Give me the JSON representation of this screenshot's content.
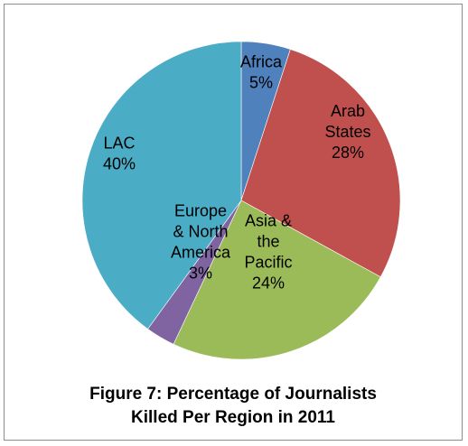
{
  "chart_data": {
    "type": "pie",
    "title": "",
    "slices": [
      {
        "label_lines": [
          "Africa",
          "5%"
        ],
        "value": 5,
        "color": "#4f81bd"
      },
      {
        "label_lines": [
          "Arab",
          "States",
          "28%"
        ],
        "value": 28,
        "color": "#c0504d"
      },
      {
        "label_lines": [
          "Asia &",
          "the",
          "Pacific",
          "24%"
        ],
        "value": 24,
        "color": "#9bbb59"
      },
      {
        "label_lines": [
          "Europe",
          "& North",
          "America",
          "3%"
        ],
        "value": 3,
        "color": "#8064a2"
      },
      {
        "label_lines": [
          "LAC",
          "40%"
        ],
        "value": 40,
        "color": "#4bacc6"
      }
    ]
  },
  "caption": {
    "line1": "Figure 7: Percentage of Journalists",
    "line2": "Killed Per Region in 2011"
  }
}
